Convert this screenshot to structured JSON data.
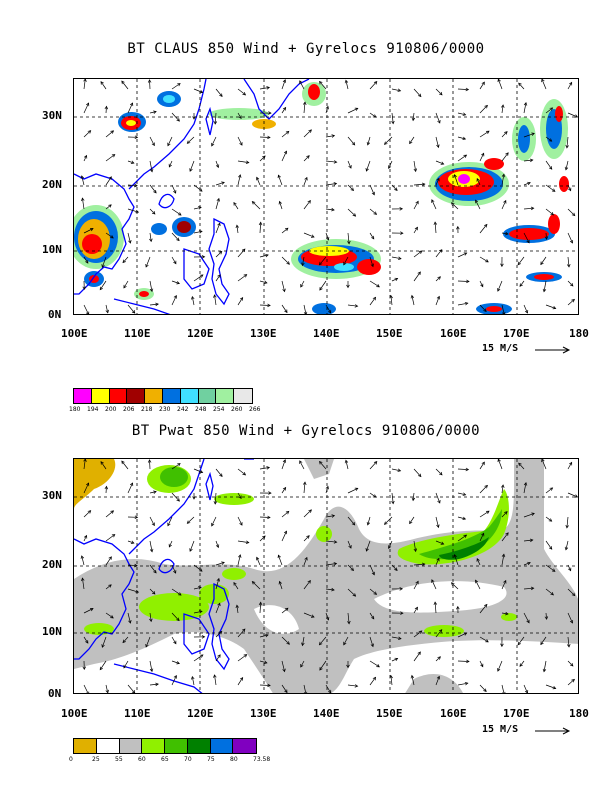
{
  "panels": [
    {
      "title": "BT CLAUS 850 Wind + Gyrelocs 910806/0000",
      "lat_labels": [
        "30N",
        "20N",
        "10N",
        "0N"
      ],
      "lon_labels": [
        "100E",
        "110E",
        "120E",
        "130E",
        "140E",
        "150E",
        "160E",
        "170E",
        "180"
      ],
      "vector_scale_label": "15 M/S",
      "legend": {
        "colors": [
          "#ff00ff",
          "#ffff00",
          "#ff0000",
          "#a00000",
          "#f0b000",
          "#0070e0",
          "#40e0ff",
          "#70d0a0",
          "#a0f0a0",
          "#e8e8e8"
        ],
        "labels": [
          "180",
          "194",
          "200",
          "206",
          "218",
          "230",
          "242",
          "248",
          "254",
          "260",
          "266"
        ]
      }
    },
    {
      "title": "BT Pwat 850 Wind + Gyrelocs 910806/0000",
      "lat_labels": [
        "30N",
        "20N",
        "10N",
        "0N"
      ],
      "lon_labels": [
        "100E",
        "110E",
        "120E",
        "130E",
        "140E",
        "150E",
        "160E",
        "170E",
        "180"
      ],
      "vector_scale_label": "15 M/S",
      "legend": {
        "colors": [
          "#e0b000",
          "#ffffff",
          "#c0c0c0",
          "#90f000",
          "#40c000",
          "#008000",
          "#0070e0",
          "#8000c0"
        ],
        "labels": [
          "0",
          "25",
          "55",
          "60",
          "65",
          "70",
          "75",
          "80",
          "73.58"
        ]
      }
    }
  ],
  "colors": {
    "coast": "#0000ff",
    "grid": "#000000"
  }
}
